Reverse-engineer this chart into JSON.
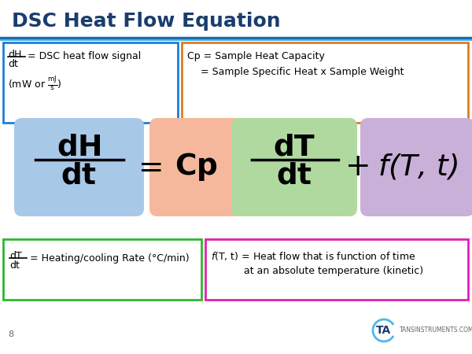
{
  "title": "DSC Heat Flow Equation",
  "title_color": "#1a3d6e",
  "title_fontsize": 18,
  "bg_color": "#ffffff",
  "accent_line_color": "#4db8e8",
  "accent_line_color2": "#1a6aad",
  "box1_color": "#1e7fd4",
  "box2_color": "#e07b20",
  "box3_color": "#2db82d",
  "box4_color": "#e020b0",
  "bubble_blue": "#a8c8e8",
  "bubble_orange": "#f5b89c",
  "bubble_green": "#b0d9a0",
  "bubble_purple": "#c8b0d8",
  "footer_text": "TANSINSTRUMENTS.COM",
  "page_num": "8"
}
